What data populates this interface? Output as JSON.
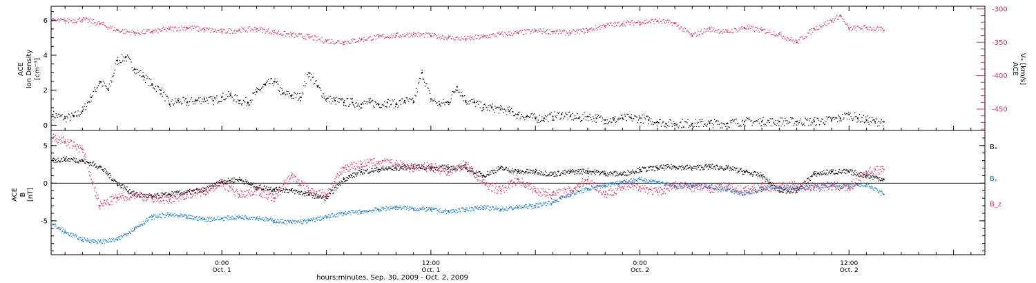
{
  "colors": {
    "density": "#000000",
    "vx": "#e3305e",
    "bx": "#000000",
    "by": "#1f7fd6",
    "bz": "#e3305e"
  },
  "x_axis": {
    "tick_labels": [
      {
        "t": 24,
        "time": "0:00",
        "date": "Oct. 1"
      },
      {
        "t": 36,
        "time": "12:00",
        "date": "Oct. 1"
      },
      {
        "t": 48,
        "time": "0:00",
        "date": "Oct. 2"
      },
      {
        "t": 60,
        "time": "12:00",
        "date": "Oct. 2"
      }
    ],
    "xlabel": "hours:minutes, Sep. 30, 2009 - Oct. 2, 2009",
    "range_hours": [
      14.2,
      67.8
    ]
  },
  "chart_data": [
    {
      "type": "scatter",
      "panel": "top",
      "ylabel_left": [
        "ACE",
        "Ion Density",
        "[cm⁻³]"
      ],
      "ylabel_right": [
        "ACE",
        "Vₓ [km/s]"
      ],
      "ylim_left": [
        -0.3,
        6.8
      ],
      "yticks_left": [
        0,
        2,
        4,
        6
      ],
      "ylim_right": [
        -482,
        -296
      ],
      "yticks_right": [
        -300,
        -350,
        -400,
        -450
      ],
      "series": [
        {
          "name": "Ion Density",
          "axis": "left",
          "x": [
            14.3,
            15.0,
            15.5,
            16.0,
            16.5,
            17.0,
            17.5,
            18.0,
            18.5,
            19.0,
            19.5,
            20.0,
            20.5,
            21.0,
            21.5,
            22.0,
            22.5,
            23.0,
            23.5,
            24.0,
            24.5,
            25.0,
            25.5,
            26.0,
            26.5,
            27.0,
            27.5,
            28.0,
            28.5,
            29.0,
            29.5,
            30.0,
            30.5,
            31.0,
            31.5,
            32.0,
            32.5,
            33.0,
            33.5,
            34.0,
            34.5,
            35.0,
            35.5,
            36.0,
            36.5,
            37.0,
            37.5,
            38.0,
            38.5,
            39.0,
            39.5,
            40.0,
            40.5,
            41.0,
            41.5,
            42.0,
            42.5,
            43.0,
            43.5,
            44.0,
            44.5,
            45.0,
            45.5,
            46.0,
            46.5,
            47.0,
            47.5,
            48.0,
            48.5,
            49.0,
            49.5,
            50.0,
            51.0,
            52.0,
            53.0,
            54.0,
            55.0,
            56.0,
            57.0,
            58.0,
            59.0,
            59.5,
            60.0,
            60.5,
            61.0,
            61.5,
            62.0
          ],
          "values": [
            0.6,
            0.4,
            0.5,
            0.8,
            1.6,
            2.5,
            2.0,
            3.7,
            3.9,
            3.2,
            2.8,
            2.3,
            2.0,
            1.2,
            1.4,
            1.3,
            1.4,
            1.5,
            1.4,
            1.6,
            1.7,
            1.4,
            1.3,
            1.9,
            2.3,
            2.5,
            1.8,
            1.7,
            1.6,
            3.0,
            2.2,
            1.5,
            1.4,
            1.3,
            1.3,
            1.2,
            1.3,
            1.2,
            1.3,
            1.2,
            1.4,
            1.3,
            3.0,
            1.5,
            1.2,
            1.3,
            2.2,
            1.4,
            1.3,
            1.0,
            1.0,
            0.9,
            0.8,
            0.6,
            0.5,
            0.4,
            0.4,
            0.5,
            0.6,
            0.5,
            0.4,
            0.5,
            0.4,
            0.3,
            0.3,
            0.4,
            0.4,
            0.4,
            0.3,
            0.2,
            0.1,
            0.1,
            0.1,
            0.1,
            0.1,
            0.2,
            0.2,
            0.2,
            0.2,
            0.2,
            0.3,
            0.4,
            0.6,
            0.4,
            0.3,
            0.2,
            0.2
          ]
        },
        {
          "name": "Vx",
          "axis": "right",
          "x": [
            14.3,
            15.0,
            16.0,
            17.0,
            18.0,
            19.0,
            20.0,
            21.0,
            22.0,
            23.0,
            24.0,
            25.0,
            26.0,
            27.0,
            28.0,
            29.0,
            30.0,
            31.0,
            32.0,
            33.0,
            34.0,
            35.0,
            36.0,
            37.0,
            38.0,
            39.0,
            40.0,
            41.0,
            42.0,
            43.0,
            44.0,
            45.0,
            46.0,
            47.0,
            48.0,
            49.0,
            50.0,
            51.0,
            52.0,
            53.0,
            54.0,
            55.0,
            56.0,
            57.0,
            58.0,
            59.0,
            59.5,
            60.0,
            61.0,
            62.0
          ],
          "values": [
            -318,
            -318,
            -316,
            -322,
            -332,
            -336,
            -334,
            -330,
            -328,
            -331,
            -334,
            -332,
            -330,
            -335,
            -339,
            -342,
            -348,
            -350,
            -346,
            -342,
            -340,
            -338,
            -340,
            -343,
            -345,
            -342,
            -338,
            -336,
            -333,
            -334,
            -336,
            -332,
            -325,
            -322,
            -320,
            -318,
            -322,
            -340,
            -330,
            -335,
            -328,
            -332,
            -338,
            -350,
            -330,
            -318,
            -310,
            -330,
            -328,
            -332
          ]
        }
      ]
    },
    {
      "type": "scatter",
      "panel": "bottom",
      "ylabel": [
        "ACE",
        "B",
        "[nT]"
      ],
      "ylim": [
        -9.5,
        7.0
      ],
      "yticks": [
        -5,
        0,
        5
      ],
      "zero_line": true,
      "legend": [
        "Bₓ",
        "Bᵧ",
        "B_z"
      ],
      "legend_placement": "right",
      "series": [
        {
          "name": "Bx",
          "x": [
            14.3,
            15.0,
            16.0,
            17.0,
            18.0,
            19.0,
            20.0,
            21.0,
            22.0,
            23.0,
            24.0,
            25.0,
            26.0,
            27.0,
            28.0,
            29.0,
            30.0,
            31.0,
            32.0,
            33.0,
            34.0,
            35.0,
            36.0,
            37.0,
            38.0,
            39.0,
            40.0,
            41.0,
            42.0,
            43.0,
            44.0,
            45.0,
            46.0,
            47.0,
            48.0,
            49.0,
            50.0,
            51.0,
            52.0,
            53.0,
            54.0,
            55.0,
            56.0,
            57.0,
            58.0,
            59.0,
            60.0,
            61.0,
            62.0
          ],
          "values": [
            3.0,
            3.2,
            3.0,
            2.2,
            0.0,
            -1.5,
            -1.8,
            -1.5,
            -1.2,
            -1.0,
            0.2,
            0.5,
            -0.5,
            -0.8,
            -1.0,
            -1.5,
            -2.0,
            0.5,
            1.5,
            1.8,
            2.0,
            2.2,
            2.0,
            2.1,
            2.0,
            1.0,
            2.0,
            1.5,
            1.5,
            1.2,
            1.5,
            1.6,
            1.3,
            1.2,
            1.8,
            2.0,
            2.2,
            2.0,
            2.2,
            2.0,
            1.5,
            1.0,
            -1.0,
            -1.0,
            1.2,
            1.5,
            1.5,
            1.0,
            0.5
          ]
        },
        {
          "name": "By",
          "x": [
            14.3,
            15.0,
            16.0,
            17.0,
            18.0,
            19.0,
            20.0,
            21.0,
            22.0,
            23.0,
            24.0,
            25.0,
            26.0,
            27.0,
            28.0,
            29.0,
            30.0,
            31.0,
            32.0,
            33.0,
            34.0,
            35.0,
            36.0,
            37.0,
            38.0,
            39.0,
            40.0,
            41.0,
            42.0,
            43.0,
            44.0,
            45.0,
            46.0,
            47.0,
            48.0,
            49.0,
            50.0,
            51.0,
            52.0,
            53.0,
            54.0,
            55.0,
            56.0,
            57.0,
            58.0,
            59.0,
            60.0,
            61.0,
            62.0
          ],
          "values": [
            -5.5,
            -6.5,
            -7.5,
            -7.8,
            -7.5,
            -6.0,
            -4.5,
            -4.2,
            -4.5,
            -4.8,
            -4.7,
            -4.5,
            -4.6,
            -5.0,
            -5.2,
            -5.0,
            -4.5,
            -4.0,
            -3.8,
            -3.5,
            -3.2,
            -3.4,
            -3.5,
            -3.8,
            -3.5,
            -3.2,
            -3.5,
            -3.2,
            -3.0,
            -2.5,
            -1.5,
            -0.8,
            -0.3,
            0.2,
            0.5,
            0.2,
            -0.5,
            -0.3,
            -0.5,
            -0.8,
            -1.5,
            -0.8,
            -0.5,
            -0.7,
            -0.5,
            -0.3,
            -0.5,
            -0.2,
            -1.5
          ]
        },
        {
          "name": "Bz",
          "x": [
            14.3,
            15.0,
            16.0,
            17.0,
            18.0,
            19.0,
            20.0,
            21.0,
            22.0,
            23.0,
            24.0,
            25.0,
            26.0,
            27.0,
            28.0,
            29.0,
            30.0,
            31.0,
            32.0,
            33.0,
            34.0,
            35.0,
            36.0,
            37.0,
            38.0,
            39.0,
            40.0,
            41.0,
            42.0,
            43.0,
            44.0,
            45.0,
            46.0,
            47.0,
            48.0,
            49.0,
            50.0,
            51.0,
            52.0,
            53.0,
            54.0,
            55.0,
            56.0,
            57.0,
            58.0,
            59.0,
            60.0,
            61.0,
            62.0
          ],
          "values": [
            6.0,
            5.5,
            4.5,
            -3.0,
            -2.0,
            -1.5,
            -2.0,
            -2.2,
            -1.5,
            -1.0,
            0.0,
            -1.5,
            -1.0,
            -2.0,
            1.0,
            -1.0,
            -1.5,
            2.0,
            2.5,
            2.8,
            2.5,
            2.0,
            2.2,
            1.5,
            2.5,
            0.0,
            -1.0,
            0.5,
            -1.0,
            -1.5,
            -1.0,
            0.5,
            -1.5,
            -0.5,
            -0.5,
            -1.2,
            -0.3,
            -0.5,
            -0.7,
            -0.5,
            -1.0,
            -0.5,
            -0.5,
            -0.4,
            -0.5,
            -0.4,
            -0.6,
            1.5,
            1.8
          ]
        }
      ]
    }
  ]
}
